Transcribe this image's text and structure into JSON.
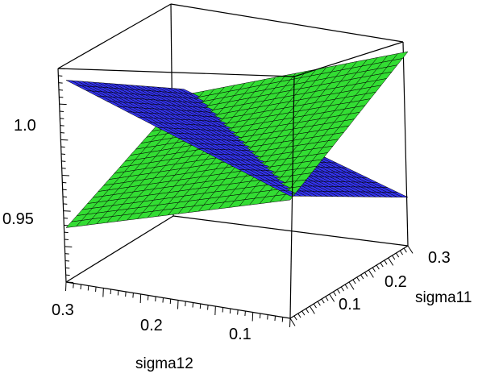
{
  "chart_data": {
    "type": "surface3d",
    "title": "",
    "axes": {
      "x": {
        "label": "sigma12",
        "range": [
          0.0,
          0.3
        ],
        "tick_labels": [
          "0.1",
          "0.2",
          "0.3"
        ]
      },
      "y": {
        "label": "sigma11",
        "range": [
          0.0,
          0.3
        ],
        "tick_labels": [
          "0.1",
          "0.2",
          "0.3"
        ]
      },
      "z": {
        "label": "",
        "range": [
          0.92,
          1.03
        ],
        "tick_labels": [
          "0.95",
          "1.0"
        ]
      }
    },
    "grid": false,
    "box": true,
    "series": [
      {
        "color": "#33dd33",
        "mesh": "black",
        "corners": [
          {
            "sigma12": 0.0,
            "sigma11": 0.0,
            "z": 0.981
          },
          {
            "sigma12": 0.0,
            "sigma11": 0.3,
            "z": 1.02
          },
          {
            "sigma12": 0.3,
            "sigma11": 0.0,
            "z": 0.948
          },
          {
            "sigma12": 0.3,
            "sigma11": 0.3,
            "z": 0.979
          }
        ]
      },
      {
        "color": "#3333ee",
        "mesh": "black",
        "corners": [
          {
            "sigma12": 0.0,
            "sigma11": 0.0,
            "z": 0.983
          },
          {
            "sigma12": 0.0,
            "sigma11": 0.3,
            "z": 0.945
          },
          {
            "sigma12": 0.3,
            "sigma11": 0.0,
            "z": 1.024
          },
          {
            "sigma12": 0.3,
            "sigma11": 0.3,
            "z": 0.982
          }
        ]
      }
    ]
  }
}
